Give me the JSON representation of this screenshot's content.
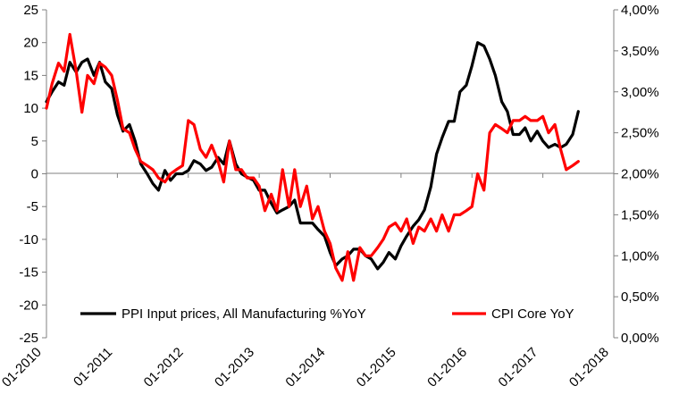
{
  "chart_data": {
    "type": "line",
    "title": "",
    "xlabel": "",
    "ylabel_left": "",
    "ylabel_right": "",
    "x_tick_labels": [
      "01-2010",
      "01-2011",
      "01-2012",
      "01-2013",
      "01-2014",
      "01-2015",
      "01-2016",
      "01-2017",
      "01-2018"
    ],
    "y_left": {
      "min": -25,
      "max": 25,
      "step": 5,
      "tick_labels": [
        "25",
        "20",
        "15",
        "10",
        "5",
        "0",
        "-5",
        "-10",
        "-15",
        "-20",
        "-25"
      ]
    },
    "y_right": {
      "min": 0,
      "max": 4,
      "step": 0.5,
      "tick_labels": [
        "4,00%",
        "3,50%",
        "3,00%",
        "2,50%",
        "2,00%",
        "1,50%",
        "1,00%",
        "0,50%",
        "0,00%"
      ]
    },
    "x_range": [
      2010.0,
      2018.0
    ],
    "legend_position": "bottom-inside",
    "series": [
      {
        "name": "PPI Input prices, All Manufacturing %YoY",
        "axis": "left",
        "color": "#000000",
        "x": [
          2010.0,
          2010.08,
          2010.17,
          2010.25,
          2010.33,
          2010.42,
          2010.5,
          2010.58,
          2010.67,
          2010.75,
          2010.83,
          2010.92,
          2011.0,
          2011.08,
          2011.17,
          2011.25,
          2011.33,
          2011.42,
          2011.5,
          2011.58,
          2011.67,
          2011.75,
          2011.83,
          2011.92,
          2012.0,
          2012.08,
          2012.17,
          2012.25,
          2012.33,
          2012.42,
          2012.5,
          2012.58,
          2012.67,
          2012.75,
          2012.83,
          2012.92,
          2013.0,
          2013.08,
          2013.17,
          2013.25,
          2013.33,
          2013.42,
          2013.5,
          2013.58,
          2013.67,
          2013.75,
          2013.83,
          2013.92,
          2014.0,
          2014.08,
          2014.17,
          2014.25,
          2014.33,
          2014.42,
          2014.5,
          2014.58,
          2014.67,
          2014.75,
          2014.83,
          2014.92,
          2015.0,
          2015.08,
          2015.17,
          2015.25,
          2015.33,
          2015.42,
          2015.5,
          2015.58,
          2015.67,
          2015.75,
          2015.83,
          2015.92,
          2016.0,
          2016.08,
          2016.17,
          2016.25,
          2016.33,
          2016.42,
          2016.5,
          2016.58,
          2016.67,
          2016.75,
          2016.83,
          2016.92,
          2017.0,
          2017.08,
          2017.17,
          2017.25,
          2017.33,
          2017.42,
          2017.5
        ],
        "values": [
          11,
          12.5,
          14,
          13.5,
          17,
          15.5,
          17,
          17.5,
          15,
          17,
          14,
          13,
          9,
          6.5,
          7.5,
          5,
          1.5,
          0,
          -1.5,
          -2.5,
          0.5,
          -1,
          0,
          0,
          0.5,
          2,
          1.5,
          0.5,
          1,
          2.5,
          1.5,
          5,
          1.5,
          0,
          -0.5,
          -1,
          -2.5,
          -2.5,
          -4.5,
          -6,
          -5.5,
          -5,
          -4,
          -7.5,
          -7.5,
          -7.5,
          -8.5,
          -9.5,
          -12,
          -14,
          -13,
          -12.5,
          -11.5,
          -11.5,
          -12.5,
          -13,
          -14.5,
          -13.5,
          -12,
          -13,
          -11,
          -9.5,
          -8,
          -7,
          -5.5,
          -2,
          3,
          5.5,
          8,
          8,
          12.5,
          13.5,
          16.5,
          20,
          19.5,
          17.5,
          15,
          11,
          9.5,
          6,
          6,
          7,
          5,
          6.5,
          5,
          4,
          4.5,
          4,
          4.5,
          6,
          9.5
        ]
      },
      {
        "name": "CPI Core YoY",
        "axis": "right",
        "color": "#ff0000",
        "x": [
          2010.0,
          2010.08,
          2010.17,
          2010.25,
          2010.33,
          2010.42,
          2010.5,
          2010.58,
          2010.67,
          2010.75,
          2010.83,
          2010.92,
          2011.0,
          2011.08,
          2011.17,
          2011.25,
          2011.33,
          2011.42,
          2011.5,
          2011.58,
          2011.67,
          2011.75,
          2011.83,
          2011.92,
          2012.0,
          2012.08,
          2012.17,
          2012.25,
          2012.33,
          2012.42,
          2012.5,
          2012.58,
          2012.67,
          2012.75,
          2012.83,
          2012.92,
          2013.0,
          2013.08,
          2013.17,
          2013.25,
          2013.33,
          2013.42,
          2013.5,
          2013.58,
          2013.67,
          2013.75,
          2013.83,
          2013.92,
          2014.0,
          2014.08,
          2014.17,
          2014.25,
          2014.33,
          2014.42,
          2014.5,
          2014.58,
          2014.67,
          2014.75,
          2014.83,
          2014.92,
          2015.0,
          2015.08,
          2015.17,
          2015.25,
          2015.33,
          2015.42,
          2015.5,
          2015.58,
          2015.67,
          2015.75,
          2015.83,
          2015.92,
          2016.0,
          2016.08,
          2016.17,
          2016.25,
          2016.33,
          2016.42,
          2016.5,
          2016.58,
          2016.67,
          2016.75,
          2016.83,
          2016.92,
          2017.0,
          2017.08,
          2017.17,
          2017.25,
          2017.33,
          2017.42,
          2017.5
        ],
        "values": [
          2.8,
          3.1,
          3.35,
          3.25,
          3.7,
          3.25,
          2.75,
          3.2,
          3.1,
          3.35,
          3.3,
          3.2,
          2.9,
          2.55,
          2.5,
          2.3,
          2.15,
          2.1,
          2.05,
          1.95,
          1.9,
          2.0,
          2.05,
          2.1,
          2.65,
          2.6,
          2.3,
          2.2,
          2.35,
          2.15,
          1.9,
          2.4,
          2.05,
          2.05,
          1.95,
          1.95,
          1.85,
          1.55,
          1.75,
          1.55,
          2.05,
          1.6,
          2.05,
          1.6,
          1.85,
          1.45,
          1.6,
          1.3,
          1.15,
          0.85,
          0.7,
          1.05,
          0.7,
          1.1,
          1.0,
          1.0,
          1.1,
          1.2,
          1.35,
          1.4,
          1.3,
          1.45,
          1.15,
          1.35,
          1.3,
          1.45,
          1.3,
          1.5,
          1.3,
          1.5,
          1.5,
          1.55,
          1.6,
          2.0,
          1.8,
          2.5,
          2.6,
          2.55,
          2.5,
          2.65,
          2.65,
          2.7,
          2.65,
          2.65,
          2.7,
          2.5,
          2.6,
          2.3,
          2.05,
          2.1,
          2.15
        ]
      }
    ]
  }
}
